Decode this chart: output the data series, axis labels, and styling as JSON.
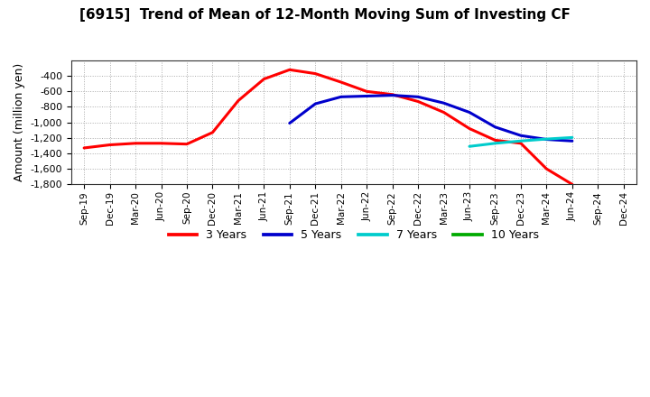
{
  "title": "[6915]  Trend of Mean of 12-Month Moving Sum of Investing CF",
  "ylabel": "Amount (million yen)",
  "ylim": [
    -1800,
    -200
  ],
  "yticks": [
    -1800,
    -1600,
    -1400,
    -1200,
    -1000,
    -800,
    -600,
    -400
  ],
  "background_color": "#ffffff",
  "plot_bg_color": "#ffffff",
  "grid_color": "#aaaaaa",
  "x_labels": [
    "Sep-19",
    "Dec-19",
    "Mar-20",
    "Jun-20",
    "Sep-20",
    "Dec-20",
    "Mar-21",
    "Jun-21",
    "Sep-21",
    "Dec-21",
    "Mar-22",
    "Jun-22",
    "Sep-22",
    "Dec-22",
    "Mar-23",
    "Jun-23",
    "Sep-23",
    "Dec-23",
    "Mar-24",
    "Jun-24",
    "Sep-24",
    "Dec-24"
  ],
  "series": {
    "3yr": {
      "color": "#ff0000",
      "label": "3 Years",
      "x": [
        0,
        1,
        2,
        3,
        4,
        5,
        6,
        7,
        8,
        9,
        10,
        11,
        12,
        13,
        14,
        15,
        16,
        17,
        18,
        19
      ],
      "y": [
        -1330,
        -1290,
        -1270,
        -1270,
        -1280,
        -1130,
        -720,
        -440,
        -320,
        -370,
        -480,
        -600,
        -640,
        -730,
        -870,
        -1080,
        -1230,
        -1270,
        -1600,
        -1800
      ]
    },
    "5yr": {
      "color": "#0000cc",
      "label": "5 Years",
      "x": [
        8,
        9,
        10,
        11,
        12,
        13,
        14,
        15,
        16,
        17,
        18,
        19
      ],
      "y": [
        -1010,
        -760,
        -670,
        -660,
        -650,
        -670,
        -750,
        -870,
        -1060,
        -1170,
        -1220,
        -1240
      ]
    },
    "7yr": {
      "color": "#00cccc",
      "label": "7 Years",
      "x": [
        15,
        16,
        17,
        18,
        19
      ],
      "y": [
        -1310,
        -1270,
        -1240,
        -1215,
        -1195
      ]
    },
    "10yr": {
      "color": "#00aa00",
      "label": "10 Years",
      "x": [],
      "y": []
    }
  },
  "legend_entries": [
    "3 Years",
    "5 Years",
    "7 Years",
    "10 Years"
  ],
  "legend_colors": [
    "#ff0000",
    "#0000cc",
    "#00cccc",
    "#00aa00"
  ],
  "line_width": 2.2
}
